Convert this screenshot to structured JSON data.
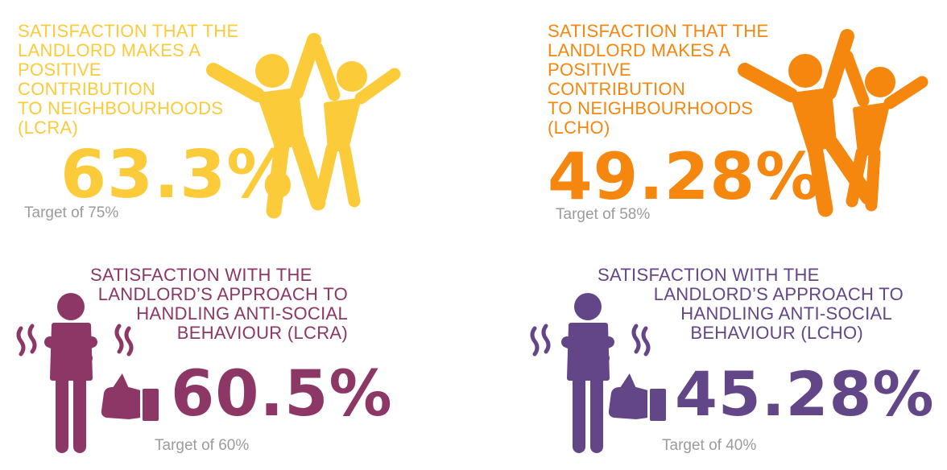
{
  "colors": {
    "yellow": "#fccb3a",
    "orange": "#f5860e",
    "plum": "#8c3766",
    "violet": "#634687",
    "target_grey": "#9b9b9b"
  },
  "panels": [
    {
      "title_lines": [
        "SATISFACTION THAT THE",
        "LANDLORD MAKES A",
        "POSITIVE",
        "CONTRIBUTION",
        "TO NEIGHBOURHOODS",
        "(LCRA)"
      ],
      "value": "63.3%",
      "target": "Target of 75%",
      "icon": "celebrating-people-icon"
    },
    {
      "title_lines": [
        "SATISFACTION THAT THE",
        "LANDLORD MAKES A",
        "POSITIVE",
        "CONTRIBUTION",
        "TO NEIGHBOURHOODS",
        "(LCHO)"
      ],
      "value": "49.28%",
      "target": "Target of 58%",
      "icon": "celebrating-people-icon"
    },
    {
      "title_lines": [
        "SATISFACTION WITH THE",
        "LANDLORD’S APPROACH TO",
        "HANDLING ANTI-SOCIAL",
        "BEHAVIOUR (LCRA)"
      ],
      "value": "60.5%",
      "target": "Target of 60%",
      "icon": "frustrated-person-icon"
    },
    {
      "title_lines": [
        "SATISFACTION WITH THE",
        "LANDLORD’S APPROACH TO",
        "HANDLING ANTI-SOCIAL",
        "BEHAVIOUR (LCHO)"
      ],
      "value": "45.28%",
      "target": "Target of 40%",
      "icon": "frustrated-person-icon"
    }
  ]
}
